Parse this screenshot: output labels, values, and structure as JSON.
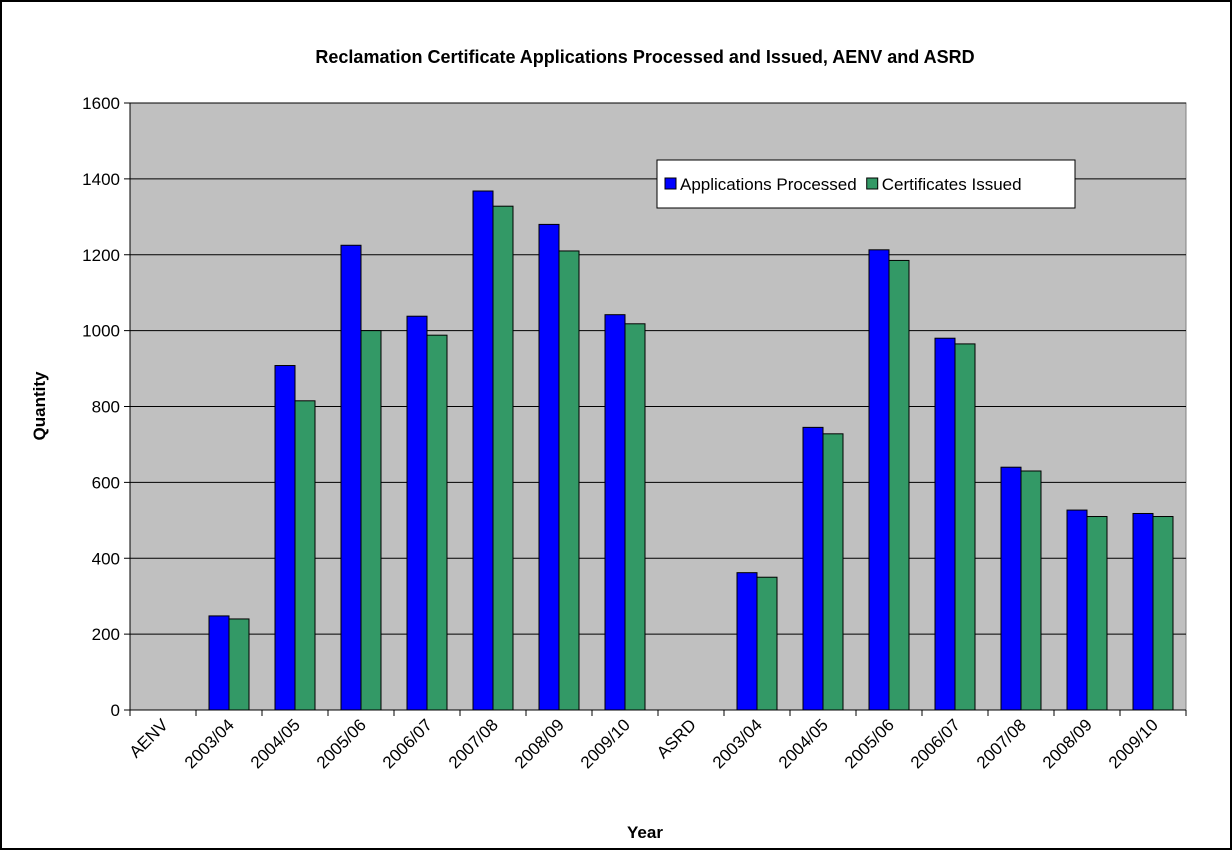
{
  "chart_data": {
    "type": "bar",
    "title": "Reclamation Certificate Applications Processed and Issued, AENV and ASRD",
    "x_label": "Year",
    "y_label": "Quantity",
    "categories": [
      "AENV",
      "2003/04",
      "2004/05",
      "2005/06",
      "2006/07",
      "2007/08",
      "2008/09",
      "2009/10",
      "ASRD",
      "2003/04",
      "2004/05",
      "2005/06",
      "2006/07",
      "2007/08",
      "2008/09",
      "2009/10"
    ],
    "series": [
      {
        "name": "Applications Processed",
        "color": "#0000ff",
        "values": [
          null,
          248,
          908,
          1225,
          1038,
          1368,
          1280,
          1042,
          null,
          362,
          745,
          1213,
          980,
          640,
          527,
          518
        ]
      },
      {
        "name": "Certificates Issued",
        "color": "#339966",
        "values": [
          null,
          240,
          815,
          1000,
          988,
          1328,
          1210,
          1018,
          null,
          350,
          728,
          1185,
          965,
          630,
          510,
          510
        ]
      }
    ],
    "ylim": [
      0,
      1600
    ],
    "yticks": [
      0,
      200,
      400,
      600,
      800,
      1000,
      1200,
      1400,
      1600
    ],
    "grid": true,
    "legend": "upper right"
  }
}
